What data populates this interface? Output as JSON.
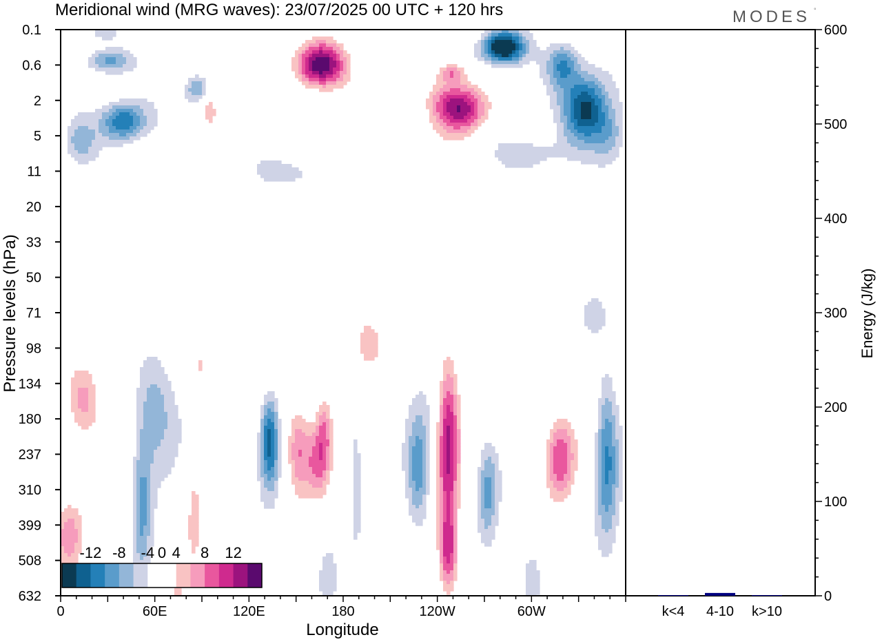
{
  "chart_data": [
    {
      "type": "heatmap",
      "title": "Meridional wind (MRG waves):  23/07/2025  00 UTC  + 120 hrs",
      "xlabel": "Longitude",
      "ylabel": "Pressure levels (hPa)",
      "x_ticks": [
        "0",
        "60E",
        "120E",
        "180",
        "120W",
        "60W"
      ],
      "x_tick_values_deg": [
        0,
        60,
        120,
        180,
        240,
        300
      ],
      "xlim_deg": [
        0,
        360
      ],
      "y_levels_hPa": [
        "0.1",
        "0.6",
        "2",
        "5",
        "11",
        "20",
        "33",
        "50",
        "71",
        "98",
        "134",
        "180",
        "237",
        "310",
        "399",
        "508",
        "632"
      ],
      "colorbar": {
        "tick_labels": [
          "-12",
          "-8",
          "-4",
          "0",
          "4",
          "8",
          "12"
        ],
        "levels": [
          -14,
          -12,
          -10,
          -8,
          -6,
          -4,
          -2,
          2,
          4,
          6,
          8,
          10,
          12,
          14
        ],
        "colors": [
          "#0b3a52",
          "#0f6190",
          "#2480b8",
          "#5a9ccb",
          "#93b6d8",
          "#cfd3e6",
          "#ffffff",
          "#ffffff",
          "#f9c3c3",
          "#f69cbc",
          "#e9579e",
          "#cf2a8e",
          "#9c137e",
          "#5a0a6e"
        ]
      },
      "features": [
        {
          "lon": 165,
          "level_hPa": "0.6",
          "sign": "+",
          "peak": 14
        },
        {
          "lon": 250,
          "level_hPa": "2",
          "sign": "+",
          "peak": 14
        },
        {
          "lon": 280,
          "level_hPa": "0.1",
          "sign": "-",
          "peak": -14
        },
        {
          "lon": 340,
          "level_hPa": "2",
          "sign": "-",
          "peak": -12
        },
        {
          "lon": 30,
          "level_hPa": "5",
          "sign": "-",
          "peak": -10
        },
        {
          "lon": 130,
          "level_hPa": "180",
          "sign": "-",
          "peak": -10
        },
        {
          "lon": 158,
          "level_hPa": "237",
          "sign": "+",
          "peak": 10
        },
        {
          "lon": 240,
          "level_hPa": "180",
          "sign": "+",
          "peak": 12
        },
        {
          "lon": 325,
          "level_hPa": "237",
          "sign": "+",
          "peak": 10
        },
        {
          "lon": 15,
          "level_hPa": "134",
          "sign": "+",
          "peak": 8
        },
        {
          "lon": 55,
          "level_hPa": "134",
          "sign": "-",
          "peak": -6
        }
      ]
    },
    {
      "type": "bar",
      "categories": [
        "k<4",
        "4-10",
        "k>10"
      ],
      "values": [
        0.5,
        3,
        0.3
      ],
      "ylabel": "Energy (J/kg)",
      "ylim": [
        0,
        600
      ],
      "y_ticks": [
        "0",
        "100",
        "200",
        "300",
        "400",
        "500",
        "600"
      ],
      "bar_color": "#00007f"
    }
  ],
  "branding": {
    "logo_text": "MODES"
  }
}
